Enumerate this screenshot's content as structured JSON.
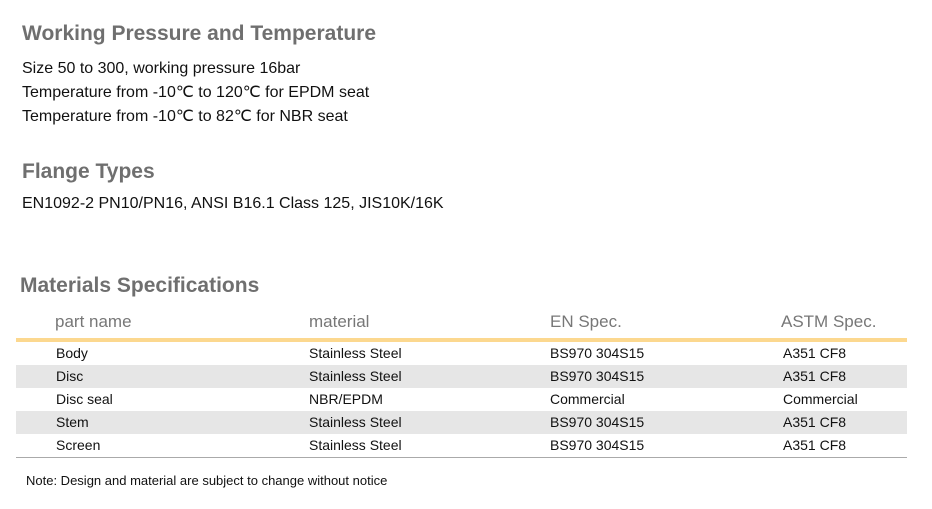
{
  "pressure": {
    "title": "Working Pressure and Temperature",
    "lines": [
      "Size 50 to 300, working pressure 16bar",
      "Temperature from -10℃ to 120℃ for EPDM seat",
      "Temperature from -10℃ to 82℃ for NBR seat"
    ]
  },
  "flange": {
    "title": "Flange Types",
    "text": "EN1092-2 PN10/PN16, ANSI B16.1 Class 125, JIS10K/16K"
  },
  "materials": {
    "title": "Materials Specifications",
    "headers": [
      "part name",
      "material",
      "EN Spec.",
      "ASTM Spec."
    ],
    "rows": [
      [
        "Body",
        "Stainless Steel",
        "BS970 304S15",
        "A351 CF8"
      ],
      [
        "Disc",
        "Stainless Steel",
        "BS970 304S15",
        "A351 CF8"
      ],
      [
        "Disc seal",
        "NBR/EPDM",
        "Commercial",
        "Commercial"
      ],
      [
        "Stem",
        "Stainless Steel",
        "BS970 304S15",
        "A351 CF8"
      ],
      [
        "Screen",
        "Stainless Steel",
        "BS970 304S15",
        "A351 CF8"
      ]
    ],
    "accent_color": "#fcd88f",
    "stripe_color": "#e6e6e6"
  },
  "note": "Note:  Design and material are subject to change without notice"
}
